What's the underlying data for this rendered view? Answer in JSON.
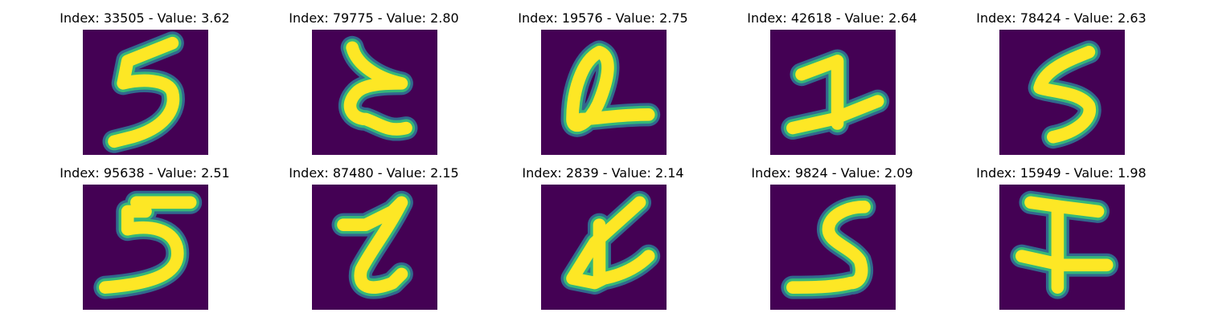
{
  "colors": {
    "background": "#440154",
    "stroke_core": "#fde725",
    "stroke_mid": "#35b779",
    "stroke_edge": "#31688e"
  },
  "panels": [
    {
      "title": "Index: 33505 - Value: 3.62",
      "digit_shape": "5"
    },
    {
      "title": "Index: 79775 - Value: 2.80",
      "digit_shape": "8-open"
    },
    {
      "title": "Index: 19576 - Value: 2.75",
      "digit_shape": "0-with-tail"
    },
    {
      "title": "Index: 42618 - Value: 2.64",
      "digit_shape": "1-serif"
    },
    {
      "title": "Index: 78424 - Value: 2.63",
      "digit_shape": "5"
    },
    {
      "title": "Index: 95638 - Value: 2.51",
      "digit_shape": "5"
    },
    {
      "title": "Index: 87480 - Value: 2.15",
      "digit_shape": "2"
    },
    {
      "title": "Index: 2839 - Value: 2.14",
      "digit_shape": "4-crossed"
    },
    {
      "title": "Index: 9824 - Value: 2.09",
      "digit_shape": "5"
    },
    {
      "title": "Index: 15949 - Value: 1.98",
      "digit_shape": "T-crossed"
    }
  ]
}
